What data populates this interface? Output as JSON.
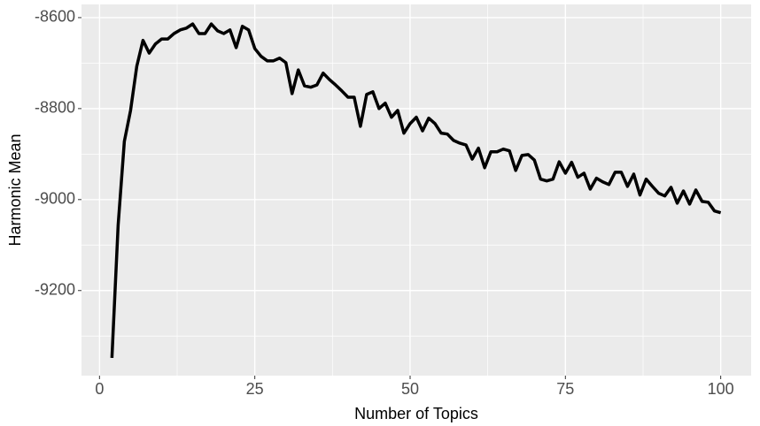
{
  "chart_data": {
    "type": "line",
    "x_label": "Number of Topics",
    "y_label": "Harmonic Mean",
    "x": [
      2,
      3,
      4,
      5,
      6,
      7,
      8,
      9,
      10,
      11,
      12,
      13,
      14,
      15,
      16,
      17,
      18,
      19,
      20,
      21,
      22,
      23,
      24,
      25,
      26,
      27,
      28,
      29,
      30,
      31,
      32,
      33,
      34,
      35,
      36,
      37,
      38,
      39,
      40,
      41,
      42,
      43,
      44,
      45,
      46,
      47,
      48,
      49,
      50,
      51,
      52,
      53,
      54,
      55,
      56,
      57,
      58,
      59,
      60,
      61,
      62,
      63,
      64,
      65,
      66,
      67,
      68,
      69,
      70,
      71,
      72,
      73,
      74,
      75,
      76,
      77,
      78,
      79,
      80,
      81,
      82,
      83,
      84,
      85,
      86,
      87,
      88,
      89,
      90,
      91,
      92,
      93,
      94,
      95,
      96,
      97,
      98,
      99,
      100
    ],
    "series": [
      {
        "color": "#000000",
        "values": [
          -9348,
          -9056,
          -8872,
          -8804,
          -8707,
          -8650,
          -8678,
          -8658,
          -8647,
          -8647,
          -8635,
          -8627,
          -8623,
          -8614,
          -8635,
          -8635,
          -8614,
          -8629,
          -8635,
          -8627,
          -8666,
          -8619,
          -8627,
          -8668,
          -8685,
          -8695,
          -8695,
          -8689,
          -8699,
          -8767,
          -8715,
          -8750,
          -8753,
          -8748,
          -8722,
          -8736,
          -8748,
          -8761,
          -8775,
          -8775,
          -8839,
          -8769,
          -8763,
          -8800,
          -8788,
          -8819,
          -8804,
          -8854,
          -8833,
          -8819,
          -8849,
          -8821,
          -8833,
          -8854,
          -8856,
          -8870,
          -8876,
          -8880,
          -8911,
          -8887,
          -8930,
          -8895,
          -8895,
          -8889,
          -8893,
          -8936,
          -8903,
          -8901,
          -8913,
          -8955,
          -8959,
          -8955,
          -8917,
          -8942,
          -8918,
          -8951,
          -8942,
          -8977,
          -8953,
          -8961,
          -8967,
          -8940,
          -8940,
          -8971,
          -8944,
          -8990,
          -8955,
          -8971,
          -8986,
          -8992,
          -8973,
          -9008,
          -8981,
          -9010,
          -8979,
          -9004,
          -9006,
          -9025,
          -9029
        ]
      }
    ],
    "xlim": [
      -2.9,
      104.9
    ],
    "ylim": [
      -9387,
      -8571
    ],
    "xticks": [
      0,
      25,
      50,
      75,
      100
    ],
    "yticks": [
      -9200,
      -9000,
      -8800,
      -8600
    ],
    "xminor": [
      12.5,
      37.5,
      62.5,
      87.5
    ],
    "yminor": [
      -9300,
      -9100,
      -8900,
      -8700
    ],
    "grid": true,
    "panel_color": "#ebebeb"
  }
}
